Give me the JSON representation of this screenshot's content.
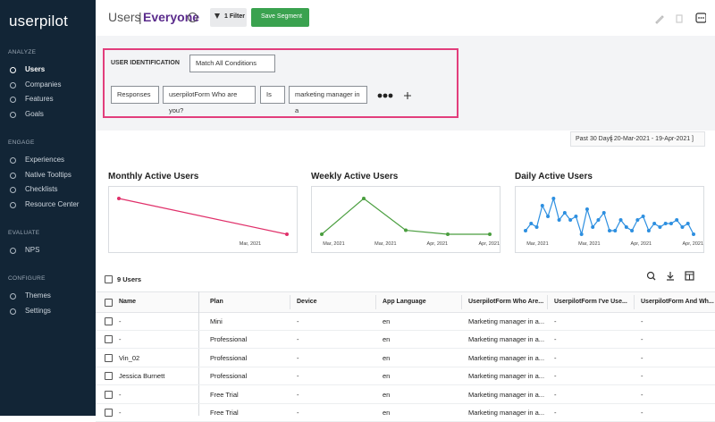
{
  "sidebar": {
    "logo": "userpilot",
    "sections": [
      {
        "label": "ANALYZE",
        "items": [
          "Users",
          "Companies",
          "Features",
          "Goals"
        ]
      },
      {
        "label": "ENGAGE",
        "items": [
          "Experiences",
          "Native Tooltips",
          "Checklists",
          "Resource Center"
        ]
      },
      {
        "label": "EVALUATE",
        "items": [
          "NPS"
        ]
      },
      {
        "label": "CONFIGURE",
        "items": [
          "Themes",
          "Settings"
        ]
      }
    ]
  },
  "header": {
    "title": "Users",
    "separator": "|",
    "segment": "Everyone",
    "filter_button": "1 Filter",
    "save_button": "Save Segment"
  },
  "filter": {
    "heading": "USER IDENTIFICATION",
    "match": "Match All Conditions",
    "condition": [
      "Responses",
      "userpilotForm Who are you?",
      "Is",
      "marketing manager in a"
    ]
  },
  "date_range": {
    "preset": "Past 30 Days",
    "range": "[ 20-Mar-2021 - 19-Apr-2021 ]"
  },
  "charts": [
    {
      "type": "line",
      "title": "Monthly Active Users",
      "color": "#e0306a",
      "x_labels": [
        "Mar, 2021"
      ],
      "values": [
        9,
        2
      ]
    },
    {
      "type": "line",
      "title": "Weekly Active Users",
      "color": "#4a9e3f",
      "x_labels": [
        "Mar, 2021",
        "Mar, 2021",
        "Apr, 2021",
        "Apr, 2021"
      ],
      "values": [
        0,
        9,
        1,
        0,
        0
      ]
    },
    {
      "type": "line",
      "title": "Daily Active Users",
      "color": "#2d8fe0",
      "x_labels": [
        "Mar, 2021",
        "Mar, 2021",
        "Apr, 2021",
        "Apr, 2021"
      ],
      "values": [
        2,
        4,
        3,
        9,
        6,
        11,
        5,
        7,
        5,
        6,
        1,
        8,
        3,
        5,
        7,
        2,
        2,
        5,
        3,
        2,
        5,
        6,
        2,
        4,
        3,
        4,
        4,
        5,
        3,
        4,
        1
      ]
    }
  ],
  "table": {
    "count": "9 Users",
    "columns": [
      "Name",
      "Plan",
      "Device",
      "App Language",
      "UserpilotForm Who Are...",
      "UserpilotForm I've Use...",
      "UserpilotForm And Wh..."
    ],
    "rows": [
      [
        "-",
        "Mini",
        "-",
        "en",
        "Marketing manager in a...",
        "-",
        "-"
      ],
      [
        "-",
        "Professional",
        "-",
        "en",
        "Marketing manager in a...",
        "-",
        "-"
      ],
      [
        "Vin_02",
        "Professional",
        "-",
        "en",
        "Marketing manager in a...",
        "-",
        "-"
      ],
      [
        "Jessica Burnett",
        "Professional",
        "-",
        "en",
        "Marketing manager in a...",
        "-",
        "-"
      ],
      [
        "-",
        "Free Trial",
        "-",
        "en",
        "Marketing manager in a...",
        "-",
        "-"
      ],
      [
        "-",
        "Free Trial",
        "-",
        "en",
        "Marketing manager in a...",
        "-",
        "-"
      ]
    ]
  }
}
